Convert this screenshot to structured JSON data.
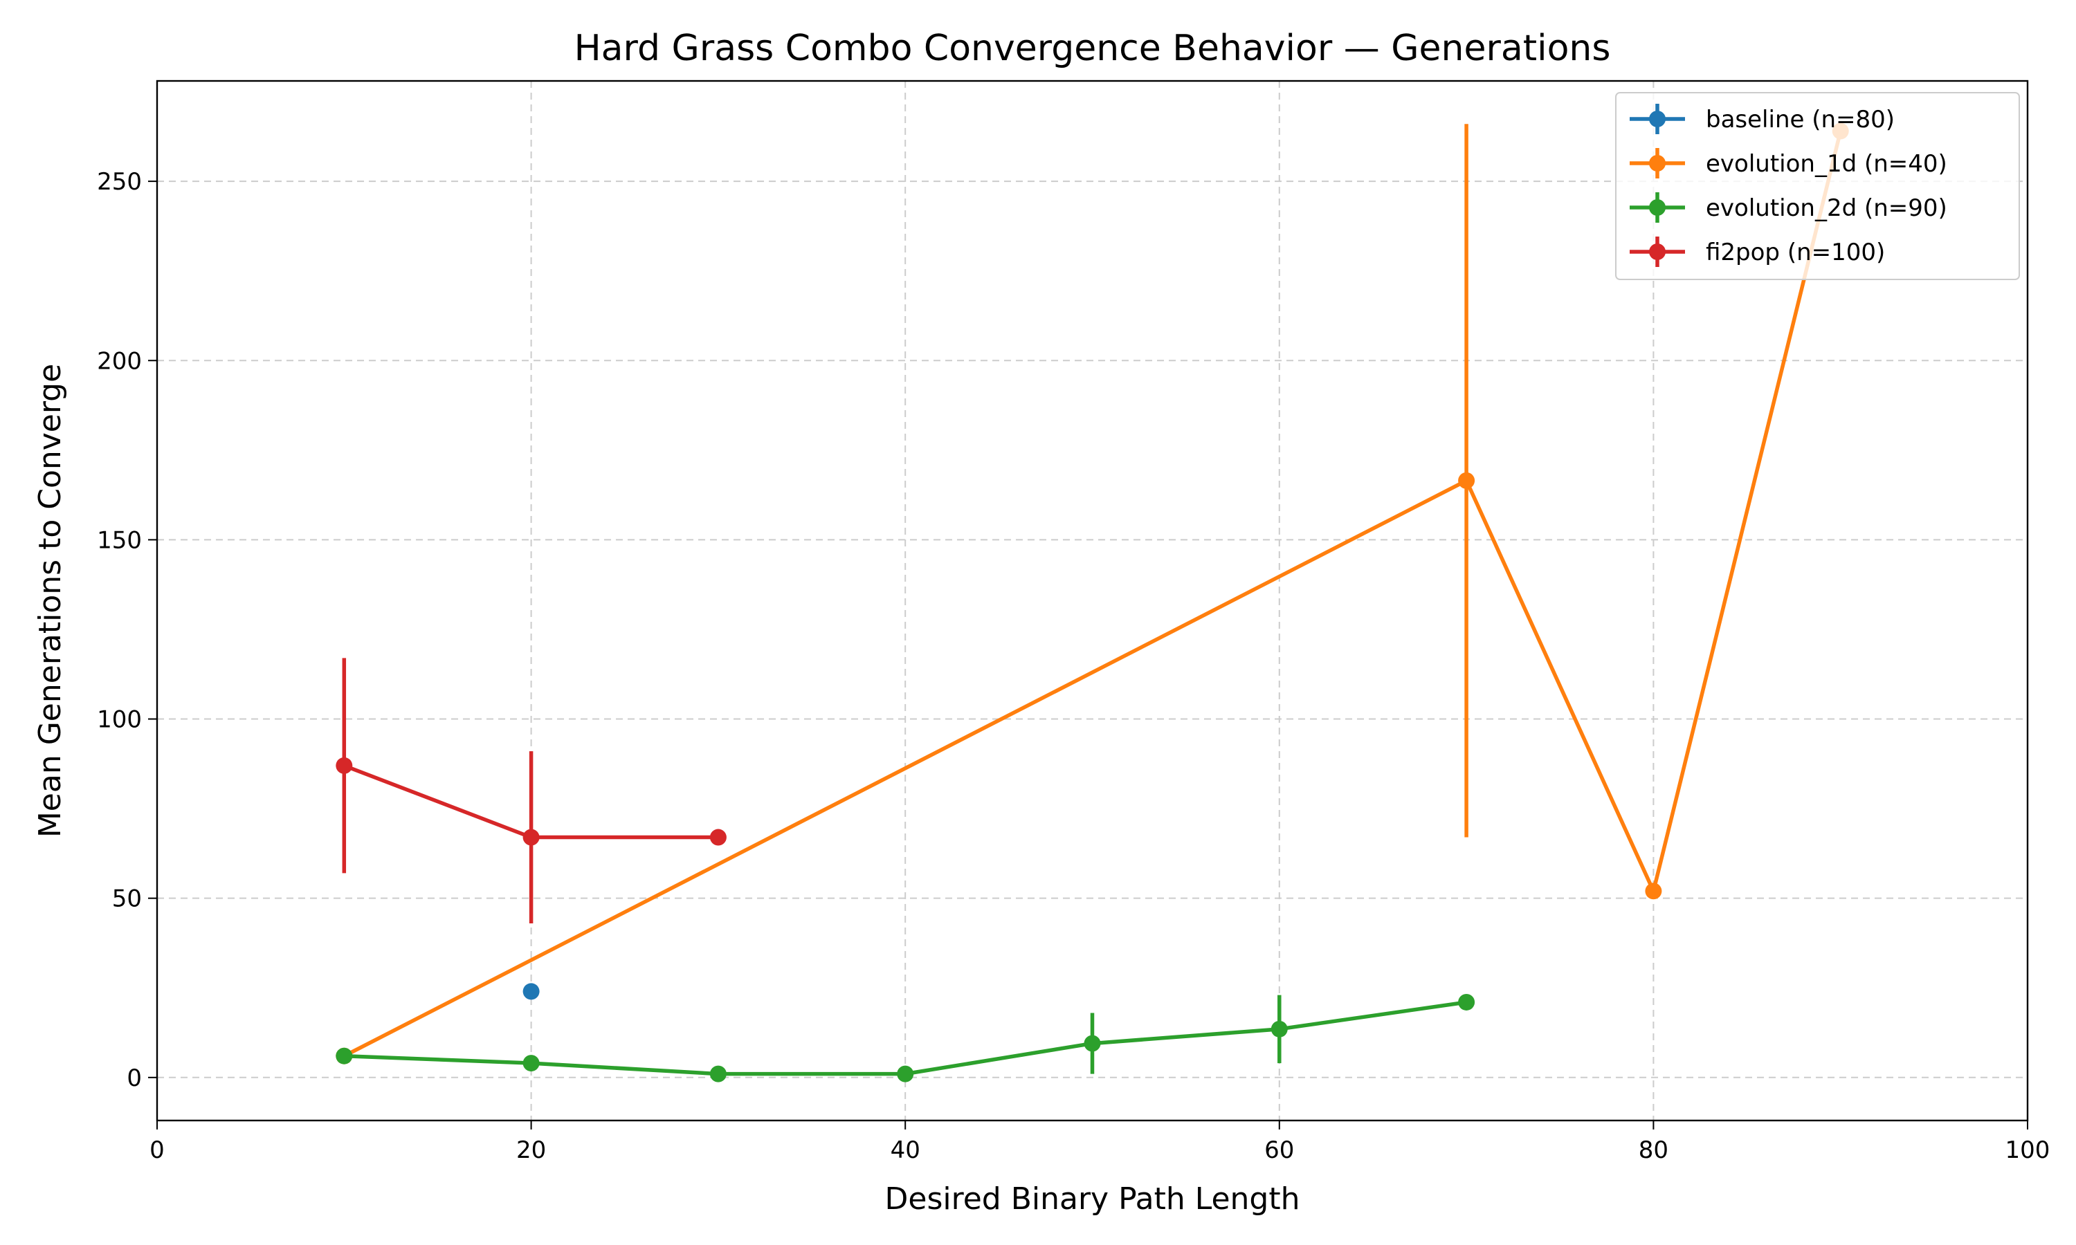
{
  "chart_data": {
    "type": "line",
    "title": "Hard Grass Combo Convergence Behavior — Generations",
    "xlabel": "Desired Binary Path Length",
    "ylabel": "Mean Generations to Converge",
    "xlim": [
      0,
      100
    ],
    "ylim": [
      -12,
      278
    ],
    "xticks": [
      0,
      20,
      40,
      60,
      80,
      100
    ],
    "yticks": [
      0,
      50,
      100,
      150,
      200,
      250
    ],
    "grid": true,
    "legend_position": "top-right",
    "series": [
      {
        "name": "baseline (n=80)",
        "color": "#1f77b4",
        "points": [
          {
            "x": 20,
            "y": 24,
            "err": 0
          }
        ]
      },
      {
        "name": "evolution_1d (n=40)",
        "color": "#ff7f0e",
        "points": [
          {
            "x": 10,
            "y": 6,
            "err": 0
          },
          {
            "x": 70,
            "y": 166.5,
            "err": 99.5
          },
          {
            "x": 80,
            "y": 52,
            "err": 0
          },
          {
            "x": 90,
            "y": 264,
            "err": 0
          }
        ]
      },
      {
        "name": "evolution_2d (n=90)",
        "color": "#2ca02c",
        "points": [
          {
            "x": 10,
            "y": 6,
            "err": 0
          },
          {
            "x": 20,
            "y": 4,
            "err": 0
          },
          {
            "x": 30,
            "y": 1,
            "err": 0
          },
          {
            "x": 40,
            "y": 1,
            "err": 0
          },
          {
            "x": 50,
            "y": 9.5,
            "err": 8.5
          },
          {
            "x": 60,
            "y": 13.5,
            "err": 9.5
          },
          {
            "x": 70,
            "y": 21,
            "err": 0
          }
        ]
      },
      {
        "name": "fi2pop (n=100)",
        "color": "#d62728",
        "points": [
          {
            "x": 10,
            "y": 87,
            "err": 30
          },
          {
            "x": 20,
            "y": 67,
            "err": 24
          },
          {
            "x": 30,
            "y": 67,
            "err": 0
          }
        ]
      }
    ]
  }
}
